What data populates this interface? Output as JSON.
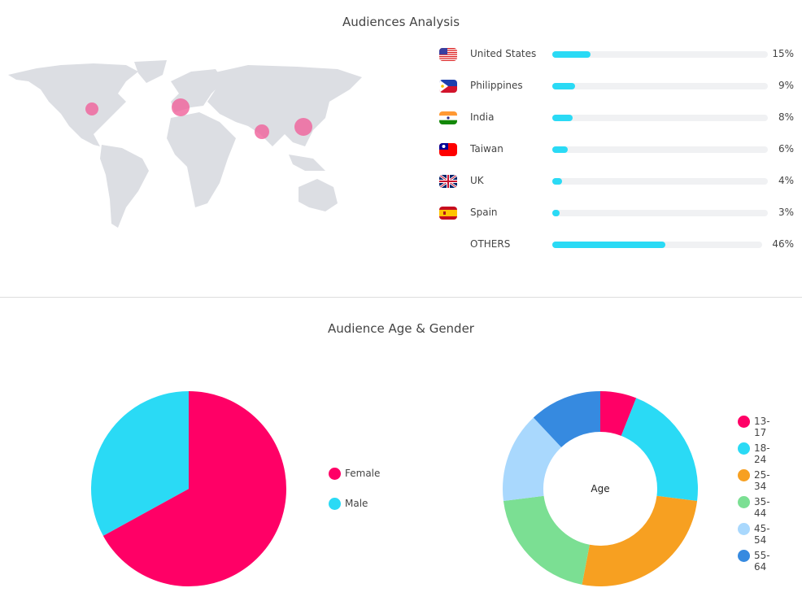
{
  "audiences": {
    "title": "Audiences Analysis",
    "countries": [
      {
        "name": "United States",
        "percent": 15,
        "label": "15%",
        "flag": "us-flag"
      },
      {
        "name": "Philippines",
        "percent": 9,
        "label": "9%",
        "flag": "ph-flag"
      },
      {
        "name": "India",
        "percent": 8,
        "label": "8%",
        "flag": "in-flag"
      },
      {
        "name": "Taiwan",
        "percent": 6,
        "label": "6%",
        "flag": "tw-flag"
      },
      {
        "name": "UK",
        "percent": 4,
        "label": "4%",
        "flag": "uk-flag"
      },
      {
        "name": "Spain",
        "percent": 3,
        "label": "3%",
        "flag": "es-flag"
      },
      {
        "name": "OTHERS",
        "percent": 46,
        "label": "46%",
        "flag": ""
      }
    ],
    "bar_color": "#2adaf5",
    "bubble_color": "#f0609a"
  },
  "age_gender": {
    "title": "Audience Age & Gender",
    "donut_center_label": "Age"
  },
  "chart_data": [
    {
      "type": "pie",
      "categories": [
        "Female",
        "Male"
      ],
      "values": [
        67,
        33
      ],
      "colors": [
        "#ff0066",
        "#2adaf5"
      ],
      "legend": "right"
    },
    {
      "type": "pie",
      "donut": true,
      "center_label": "Age",
      "categories": [
        "13-17",
        "18-24",
        "25-34",
        "35-44",
        "45-54",
        "55-64"
      ],
      "values": [
        6,
        21,
        26,
        20,
        15,
        12
      ],
      "colors": [
        "#ff0066",
        "#2adaf5",
        "#f7a021",
        "#7bdf93",
        "#a9d8fd",
        "#368ae0"
      ],
      "legend": "right"
    }
  ]
}
